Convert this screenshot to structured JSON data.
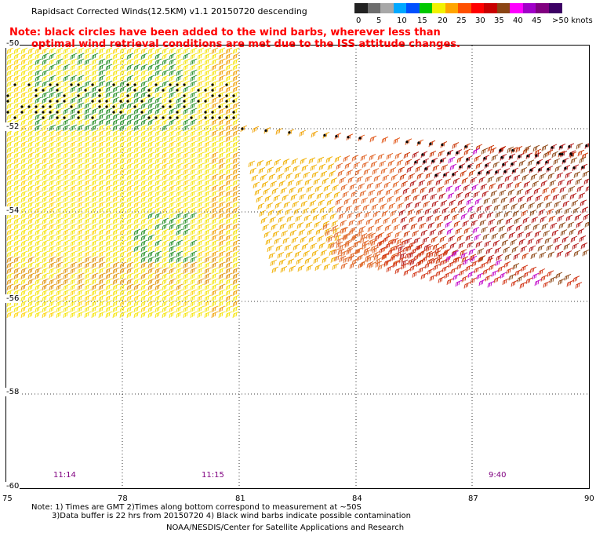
{
  "title": "Rapidsact Corrected Winds(12.5KM) v1.1 20150720 descending",
  "note": {
    "line1": "Note: black circles have been added to the wind barbs, wherever less than",
    "line2": "optimal wind retrieval conditions are met due to the ISS attitude changes."
  },
  "legend": {
    "unit": "knots",
    "labels": [
      "0",
      "5",
      "10",
      "15",
      "20",
      "25",
      "30",
      "35",
      "40",
      "45",
      ">50 knots"
    ],
    "colors": [
      "#222222",
      "#6e6e6e",
      "#a8a8a8",
      "#00a8ff",
      "#0050ff",
      "#00c800",
      "#f2f200",
      "#ffa500",
      "#ff5000",
      "#ff0000",
      "#c80000",
      "#8b4513",
      "#ff00ff",
      "#a000c8",
      "#800080",
      "#3c0064"
    ]
  },
  "map": {
    "latitude_labels": [
      "-50",
      "-52",
      "-54",
      "-56",
      "-58",
      "-60"
    ],
    "longitude_labels": [
      "75",
      "78",
      "81",
      "84",
      "87",
      "90"
    ],
    "time_labels": [
      "11:14",
      "11:15",
      "9:40"
    ]
  },
  "footer": {
    "line1": "Note: 1) Times are GMT 2)Times along bottom correspond to measurement at ~50S",
    "line2": "3)Data buffer is 22 hrs from 20150720 4) Black wind barbs indicate possible contamination",
    "line3": "NOAA/NESDIS/Center for Satellite Applications and Research"
  }
}
